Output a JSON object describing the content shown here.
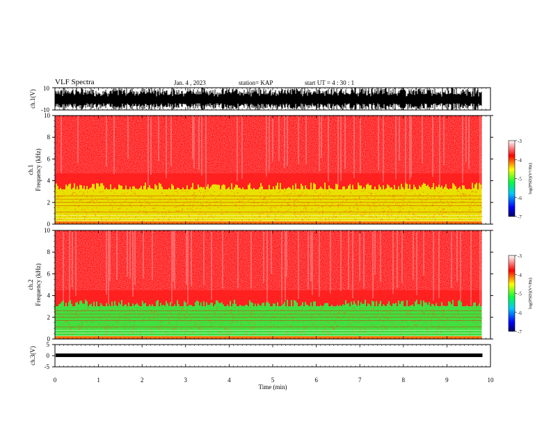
{
  "header": {
    "title": "VLF Spectra",
    "date": "Jan. 4 , 2023",
    "station": "station= KAP",
    "start": "start UT = 4 : 30 : 1"
  },
  "chart_data": [
    {
      "type": "line",
      "name": "ch1-waveform",
      "ylabel": "ch.1(V)",
      "ylim": [
        -10,
        10
      ],
      "yticks": [
        "10",
        "-10"
      ],
      "xlim": [
        0,
        10
      ],
      "description_color": "#000000"
    },
    {
      "type": "heatmap",
      "name": "ch1-spectrogram",
      "ylabel_lines": [
        "ch.1",
        "Frequency (kHz)"
      ],
      "ylim": [
        0,
        10
      ],
      "yticks": [
        "0",
        "2",
        "4",
        "6",
        "8",
        "10"
      ],
      "xlim": [
        0,
        10
      ],
      "data_end_min": 9.8,
      "bands": [
        {
          "from_khz": 0,
          "to_khz": 3.2,
          "color": "#e8e000"
        },
        {
          "from_khz": 3.2,
          "to_khz": 10,
          "color": "#ff2020"
        }
      ],
      "colorbar": {
        "label": "log(PSD)(V²/Hz)",
        "ticks": [
          "-3",
          "-4",
          "-5",
          "-6",
          "-7"
        ],
        "range": [
          -7,
          -3
        ]
      }
    },
    {
      "type": "heatmap",
      "name": "ch2-spectrogram",
      "ylabel_lines": [
        "ch.2",
        "Frequency (kHz)"
      ],
      "ylim": [
        0,
        10
      ],
      "yticks": [
        "0",
        "2",
        "4",
        "6",
        "8",
        "10"
      ],
      "xlim": [
        0,
        10
      ],
      "data_end_min": 9.8,
      "bands": [
        {
          "from_khz": 0,
          "to_khz": 3.0,
          "color": "#40e040"
        },
        {
          "from_khz": 3.0,
          "to_khz": 10,
          "color": "#ff2020"
        }
      ],
      "colorbar": {
        "label": "log(PSD)(V²/Hz)",
        "ticks": [
          "-3",
          "-4",
          "-5",
          "-6",
          "-7"
        ],
        "range": [
          -7,
          -3
        ]
      }
    },
    {
      "type": "line",
      "name": "ch3-waveform",
      "ylabel": "ch.3(V)",
      "ylim": [
        -5,
        5
      ],
      "yticks": [
        "5",
        "0",
        "-5"
      ],
      "xlim": [
        0,
        10
      ],
      "level_v": 0.2
    }
  ],
  "xaxis": {
    "label": "Time (min)",
    "ticks": [
      "0",
      "1",
      "2",
      "3",
      "4",
      "5",
      "6",
      "7",
      "8",
      "9",
      "10"
    ]
  },
  "colors": {
    "spectrum_high": "#ff2020",
    "ch1_low_band": "#e8e000",
    "ch2_low_band": "#40e040"
  }
}
